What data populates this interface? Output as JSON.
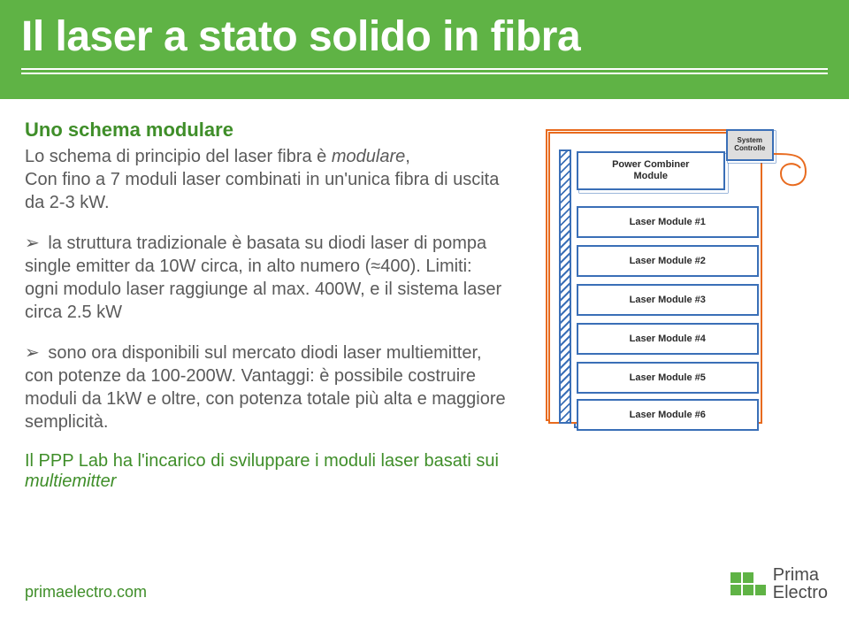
{
  "header": {
    "title": "Il laser a stato solido in fibra"
  },
  "section": {
    "subtitle": "Uno schema modulare",
    "intro_1": "Lo schema di principio del laser fibra è ",
    "intro_modulare": "modulare",
    "intro_2": ",",
    "intro_3": "Con fino a 7 moduli laser combinati in un'unica fibra di uscita da 2-3 kW.",
    "bullet1_a": "la struttura tradizionale è basata su diodi laser di pompa ",
    "bullet1_single": "single emitter",
    "bullet1_b": " da 10W circa, in alto numero (≈400). Limiti: ogni modulo laser raggiunge al max. 400W, e il sistema laser circa 2.5 kW",
    "bullet2_a": "sono ora disponibili sul mercato diodi laser ",
    "bullet2_multi": "multiemitter",
    "bullet2_b": ", con potenze da 100-200W. Vantaggi: è possibile costruire moduli da 1kW e oltre, con potenza totale più alta e maggiore semplicità.",
    "footnote_a": "Il PPP Lab ha l'incarico di sviluppare i moduli laser basati sui ",
    "footnote_b": "multiemitter"
  },
  "diagram": {
    "combiner": "Power Combiner\nModule",
    "controller": "System\nControlle",
    "modules": [
      "Laser Module #1",
      "Laser Module #2",
      "Laser Module #3",
      "Laser Module #4",
      "Laser Module #5",
      "Laser Module #6"
    ],
    "colors": {
      "box_border": "#3a6fb7",
      "frame_border": "#e86b1f",
      "fiber": "#e86b1f"
    }
  },
  "footer": {
    "url": "primaelectro.com",
    "brand_top": "Prima",
    "brand_bot": "Electro"
  },
  "styling": {
    "header_bg": "#5fb345",
    "accent_green": "#3f8e29",
    "body_text": "#5a5a5a",
    "title_fontsize": 48,
    "subtitle_fontsize": 22,
    "body_fontsize": 20
  }
}
